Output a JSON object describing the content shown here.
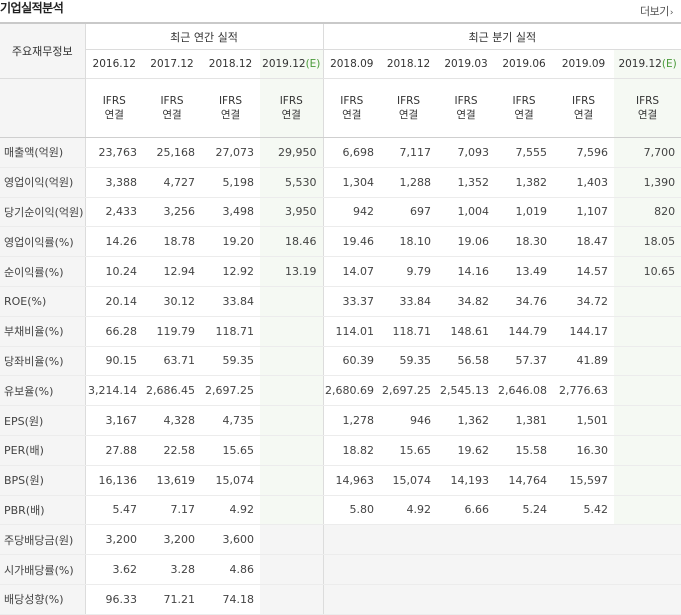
{
  "title": "기업실적분석",
  "more_label": "더보기",
  "row_header_label": "주요재무정보",
  "annual_label": "최근 연간 실적",
  "quarterly_label": "최근 분기 실적",
  "periods": [
    {
      "label": "2016.12",
      "est": false
    },
    {
      "label": "2017.12",
      "est": false
    },
    {
      "label": "2018.12",
      "est": false
    },
    {
      "label": "2019.12",
      "est": true
    },
    {
      "label": "2018.09",
      "est": false
    },
    {
      "label": "2018.12",
      "est": false
    },
    {
      "label": "2019.03",
      "est": false
    },
    {
      "label": "2019.06",
      "est": false
    },
    {
      "label": "2019.09",
      "est": false
    },
    {
      "label": "2019.12",
      "est": true
    }
  ],
  "est_marker": "(E)",
  "ifrs_line1": "IFRS",
  "ifrs_line2": "연결",
  "rows": [
    {
      "label": "매출액(억원)",
      "values": [
        "23,763",
        "25,168",
        "27,073",
        "29,950",
        "6,698",
        "7,117",
        "7,093",
        "7,555",
        "7,596",
        "7,700"
      ]
    },
    {
      "label": "영업이익(억원)",
      "values": [
        "3,388",
        "4,727",
        "5,198",
        "5,530",
        "1,304",
        "1,288",
        "1,352",
        "1,382",
        "1,403",
        "1,390"
      ]
    },
    {
      "label": "당기순이익(억원)",
      "values": [
        "2,433",
        "3,256",
        "3,498",
        "3,950",
        "942",
        "697",
        "1,004",
        "1,019",
        "1,107",
        "820"
      ]
    },
    {
      "label": "영업이익률(%)",
      "values": [
        "14.26",
        "18.78",
        "19.20",
        "18.46",
        "19.46",
        "18.10",
        "19.06",
        "18.30",
        "18.47",
        "18.05"
      ]
    },
    {
      "label": "순이익률(%)",
      "values": [
        "10.24",
        "12.94",
        "12.92",
        "13.19",
        "14.07",
        "9.79",
        "14.16",
        "13.49",
        "14.57",
        "10.65"
      ]
    },
    {
      "label": "ROE(%)",
      "values": [
        "20.14",
        "30.12",
        "33.84",
        "",
        "33.37",
        "33.84",
        "34.82",
        "34.76",
        "34.72",
        ""
      ]
    },
    {
      "label": "부채비율(%)",
      "values": [
        "66.28",
        "119.79",
        "118.71",
        "",
        "114.01",
        "118.71",
        "148.61",
        "144.79",
        "144.17",
        ""
      ]
    },
    {
      "label": "당좌비율(%)",
      "values": [
        "90.15",
        "63.71",
        "59.35",
        "",
        "60.39",
        "59.35",
        "56.58",
        "57.37",
        "41.89",
        ""
      ]
    },
    {
      "label": "유보율(%)",
      "values": [
        "3,214.14",
        "2,686.45",
        "2,697.25",
        "",
        "2,680.69",
        "2,697.25",
        "2,545.13",
        "2,646.08",
        "2,776.63",
        ""
      ]
    },
    {
      "label": "EPS(원)",
      "values": [
        "3,167",
        "4,328",
        "4,735",
        "",
        "1,278",
        "946",
        "1,362",
        "1,381",
        "1,501",
        ""
      ]
    },
    {
      "label": "PER(배)",
      "values": [
        "27.88",
        "22.58",
        "15.65",
        "",
        "18.82",
        "15.65",
        "19.62",
        "15.58",
        "16.30",
        ""
      ]
    },
    {
      "label": "BPS(원)",
      "values": [
        "16,136",
        "13,619",
        "15,074",
        "",
        "14,963",
        "15,074",
        "14,193",
        "14,764",
        "15,597",
        ""
      ]
    },
    {
      "label": "PBR(배)",
      "values": [
        "5.47",
        "7.17",
        "4.92",
        "",
        "5.80",
        "4.92",
        "6.66",
        "5.24",
        "5.42",
        ""
      ]
    },
    {
      "label": "주당배당금(원)",
      "values": [
        "3,200",
        "3,200",
        "3,600",
        "",
        "",
        "",
        "",
        "",
        "",
        ""
      ]
    },
    {
      "label": "시가배당률(%)",
      "values": [
        "3.62",
        "3.28",
        "4.86",
        "",
        "",
        "",
        "",
        "",
        "",
        ""
      ]
    },
    {
      "label": "배당성향(%)",
      "values": [
        "96.33",
        "71.21",
        "74.18",
        "",
        "",
        "",
        "",
        "",
        "",
        ""
      ]
    }
  ]
}
